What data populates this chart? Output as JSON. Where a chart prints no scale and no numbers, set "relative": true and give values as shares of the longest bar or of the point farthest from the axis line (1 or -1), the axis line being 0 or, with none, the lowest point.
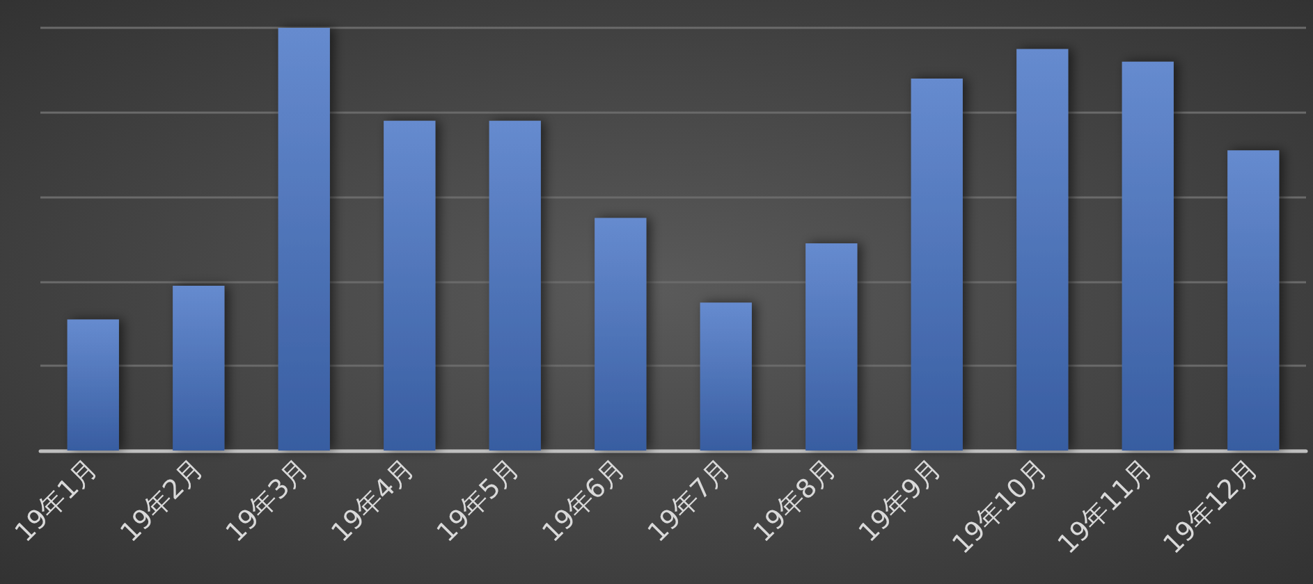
{
  "chart_data": {
    "type": "bar",
    "categories": [
      "19年1月",
      "19年2月",
      "19年3月",
      "19年4月",
      "19年5月",
      "19年6月",
      "19年7月",
      "19年8月",
      "19年9月",
      "19年10月",
      "19年11月",
      "19年12月"
    ],
    "values": [
      0.31,
      0.39,
      1,
      0.78,
      0.78,
      0.55,
      0.35,
      0.49,
      0.88,
      0.95,
      0.92,
      0.71
    ],
    "color": "#4472c4",
    "relative": true,
    "grid": "y"
  }
}
